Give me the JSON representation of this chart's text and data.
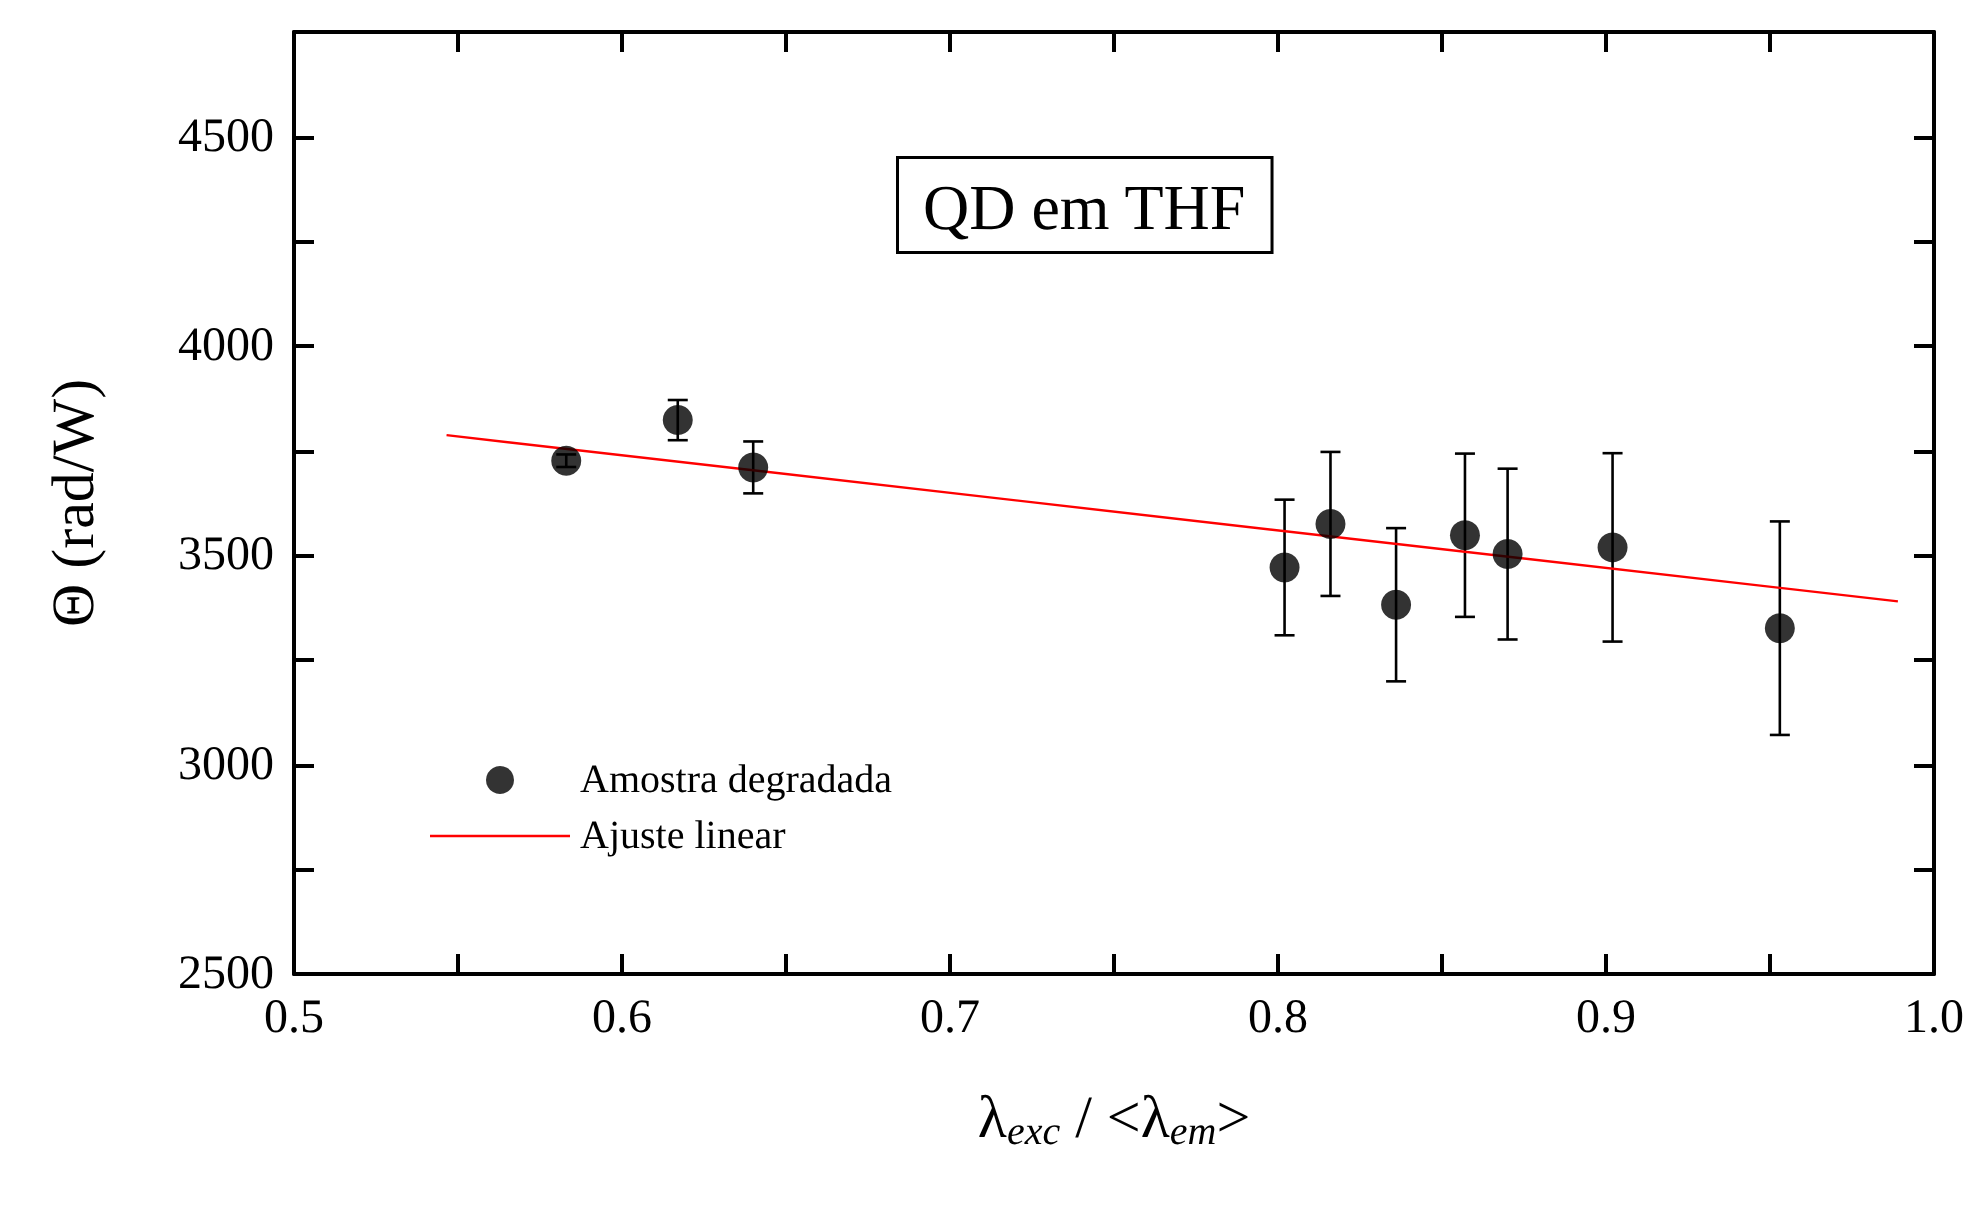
{
  "chart_data": {
    "type": "scatter",
    "xlabel": "λ$_{exc}$ / <λ$_{em}$>",
    "ylabel": "Θ (rad/W)",
    "annotations": [
      "QD em THF"
    ],
    "xlim": [
      0.5,
      1.0
    ],
    "ylim": [
      2500,
      4750
    ],
    "xticks": [
      0.5,
      {
        "value": 0.55,
        "label": null
      },
      0.6,
      {
        "value": 0.65,
        "label": null
      },
      0.7,
      {
        "value": 0.75,
        "label": null
      },
      0.8,
      {
        "value": 0.85,
        "label": null
      },
      0.9,
      {
        "value": 0.95,
        "label": null
      },
      {
        "value": 1.0,
        "label": "1.0"
      }
    ],
    "yticks": [
      2500,
      {
        "value": 2750,
        "label": null
      },
      3000,
      {
        "value": 3250,
        "label": null
      },
      3500,
      {
        "value": 3750,
        "label": null
      },
      4000,
      {
        "value": 4250,
        "label": null
      },
      4500
    ],
    "legend": "bottom left",
    "grid": false,
    "marker": "circle",
    "series": [
      {
        "name": "Amostra degradada",
        "color": "#000000",
        "x": [
          0.583,
          0.617,
          0.64,
          0.802,
          0.816,
          0.836,
          0.857,
          0.87,
          0.902,
          0.953
        ],
        "values": [
          3726,
          3823,
          3710,
          3471,
          3575,
          3382,
          3548,
          3503,
          3519,
          3326
        ],
        "errors": [
          15,
          48,
          62,
          162,
          172,
          183,
          195,
          204,
          225,
          255
        ]
      },
      {
        "name": "Ajuste linear",
        "type": "line",
        "color": "#ff0000",
        "marker": "none",
        "x": [
          0.5465,
          0.989
        ],
        "values": [
          3787,
          3390
        ]
      }
    ]
  }
}
